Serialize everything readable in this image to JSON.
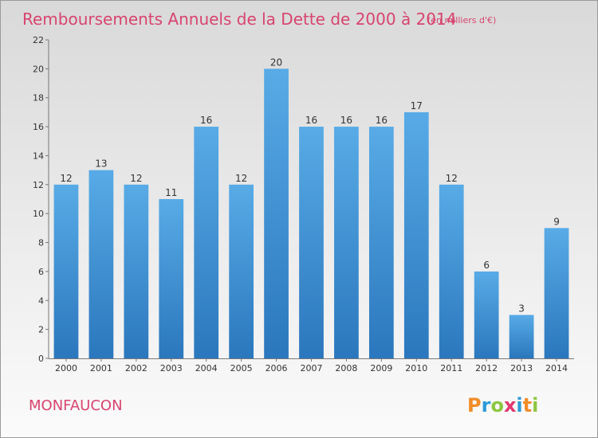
{
  "title": "Remboursements Annuels de la Dette de 2000 à 2014",
  "unit_note": "(en milliers d'€)",
  "place_name": "MONFAUCON",
  "brand": {
    "letters": [
      "P",
      "r",
      "o",
      "x",
      "i",
      "t",
      "i"
    ],
    "colors": [
      "#f28c28",
      "#2e9ad7",
      "#8dc63f",
      "#e2376e",
      "#2e9ad7",
      "#f28c28",
      "#8dc63f"
    ]
  },
  "colors": {
    "background_top": "#d9d9d9",
    "background_bottom": "#fbfbfb",
    "bar_top": "#58abe6",
    "bar_bottom": "#2b77bd",
    "title": "#d8446f",
    "axis_text": "#333333"
  },
  "chart_data": {
    "type": "bar",
    "categories": [
      "2000",
      "2001",
      "2002",
      "2003",
      "2004",
      "2005",
      "2006",
      "2007",
      "2008",
      "2009",
      "2010",
      "2011",
      "2012",
      "2013",
      "2014"
    ],
    "values": [
      12,
      13,
      12,
      11,
      16,
      12,
      20,
      16,
      16,
      16,
      17,
      12,
      6,
      3,
      9
    ],
    "title": "Remboursements Annuels de la Dette de 2000 à 2014",
    "subtitle": "(en milliers d'€)",
    "xlabel": "",
    "ylabel": "",
    "ylim": [
      0,
      22
    ],
    "yticks": [
      0,
      2,
      4,
      6,
      8,
      10,
      12,
      14,
      16,
      18,
      20,
      22
    ],
    "grid": false,
    "legend": "none",
    "data_labels": true
  }
}
